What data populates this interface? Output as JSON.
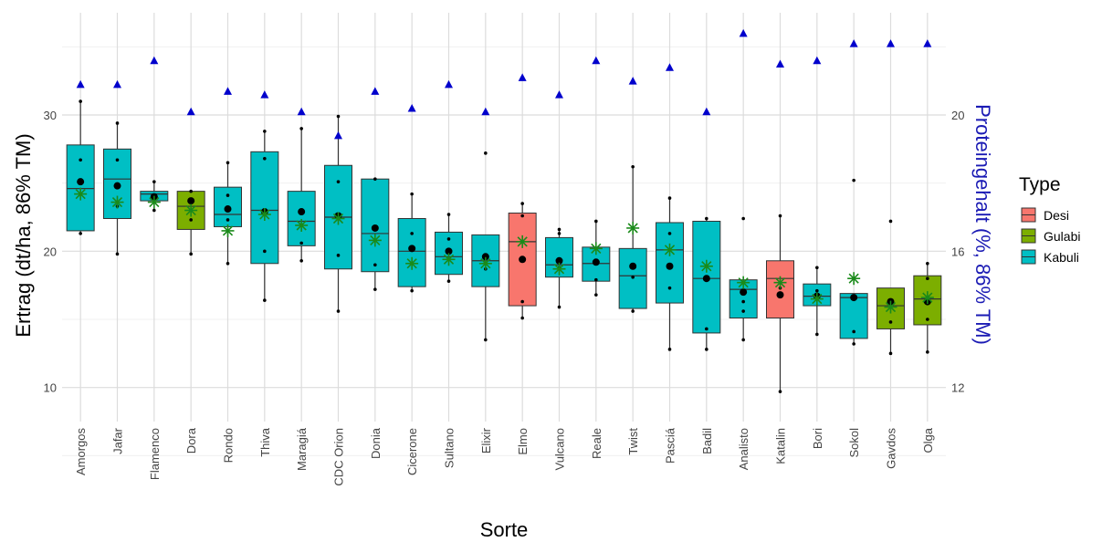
{
  "chart_data": {
    "type": "boxplot",
    "xlabel": "Sorte",
    "ylabel": "Ertrag (dt/ha, 86% TM)",
    "y2label": "Proteingehalt (%, 86% TM)",
    "ylim": [
      7.5,
      37.5
    ],
    "y_ticks": [
      10,
      20,
      30
    ],
    "y2_ticks": [
      12,
      16,
      20
    ],
    "y2_transform": "protein = yield * 0.4 + 8",
    "grid": true,
    "legend": {
      "title": "Type",
      "position": "right",
      "items": [
        {
          "label": "Desi",
          "color": "#F8766D"
        },
        {
          "label": "Gulabi",
          "color": "#7CAE00"
        },
        {
          "label": "Kabuli",
          "color": "#00BFC4"
        }
      ]
    },
    "marker_colors": {
      "protein": "#0000CC",
      "star": "#1A8A1A",
      "mean": "#000000",
      "median": "#000000"
    },
    "varieties": [
      {
        "name": "Amorgos",
        "type": "Kabuli",
        "whisker_low": 21.3,
        "q1": 21.5,
        "median": 24.6,
        "q3": 27.8,
        "whisker_high": 31.0,
        "mean": 25.1,
        "star": 24.2,
        "protein": 20.9,
        "points": [
          21.3,
          26.7,
          31.0
        ]
      },
      {
        "name": "Jafar",
        "type": "Kabuli",
        "whisker_low": 19.8,
        "q1": 22.4,
        "median": 25.3,
        "q3": 27.5,
        "whisker_high": 29.4,
        "mean": 24.8,
        "star": 23.6,
        "protein": 20.9,
        "points": [
          19.8,
          23.3,
          26.7,
          29.4
        ]
      },
      {
        "name": "Flamenco",
        "type": "Kabuli",
        "whisker_low": 23.0,
        "q1": 23.7,
        "median": 24.2,
        "q3": 24.4,
        "whisker_high": 25.1,
        "mean": 24.0,
        "star": 23.6,
        "protein": 21.6,
        "points": [
          23.0,
          23.9,
          25.1
        ]
      },
      {
        "name": "Dora",
        "type": "Gulabi",
        "whisker_low": 19.8,
        "q1": 21.6,
        "median": 23.3,
        "q3": 24.4,
        "whisker_high": 24.4,
        "mean": 23.7,
        "star": 23.0,
        "protein": 20.1,
        "points": [
          19.8,
          22.3,
          24.4
        ]
      },
      {
        "name": "Rondo",
        "type": "Kabuli",
        "whisker_low": 19.1,
        "q1": 21.8,
        "median": 22.7,
        "q3": 24.7,
        "whisker_high": 26.5,
        "mean": 23.1,
        "star": 21.5,
        "protein": 20.7,
        "points": [
          19.1,
          22.3,
          24.1,
          26.5
        ]
      },
      {
        "name": "Thiva",
        "type": "Kabuli",
        "whisker_low": 16.4,
        "q1": 19.1,
        "median": 23.0,
        "q3": 27.3,
        "whisker_high": 28.8,
        "mean": 22.9,
        "star": 22.7,
        "protein": 20.6,
        "points": [
          16.4,
          20.0,
          26.8,
          28.8
        ]
      },
      {
        "name": "Maragiá",
        "type": "Kabuli",
        "whisker_low": 19.3,
        "q1": 20.4,
        "median": 22.2,
        "q3": 24.4,
        "whisker_high": 29.0,
        "mean": 22.9,
        "star": 21.9,
        "protein": 20.1,
        "points": [
          19.3,
          20.6,
          29.0
        ]
      },
      {
        "name": "CDC Orion",
        "type": "Kabuli",
        "whisker_low": 15.6,
        "q1": 18.7,
        "median": 22.5,
        "q3": 26.3,
        "whisker_high": 29.9,
        "mean": 22.6,
        "star": 22.4,
        "protein": 19.4,
        "points": [
          15.6,
          19.7,
          25.1,
          29.9
        ]
      },
      {
        "name": "Donia",
        "type": "Kabuli",
        "whisker_low": 17.2,
        "q1": 18.5,
        "median": 21.3,
        "q3": 25.3,
        "whisker_high": 25.3,
        "mean": 21.7,
        "star": 20.8,
        "protein": 20.7,
        "points": [
          17.2,
          19.0,
          25.3
        ]
      },
      {
        "name": "Cicerone",
        "type": "Kabuli",
        "whisker_low": 17.1,
        "q1": 17.4,
        "median": 20.0,
        "q3": 22.4,
        "whisker_high": 24.2,
        "mean": 20.2,
        "star": 19.1,
        "protein": 20.2,
        "points": [
          17.1,
          21.3,
          24.2
        ]
      },
      {
        "name": "Sultano",
        "type": "Kabuli",
        "whisker_low": 17.8,
        "q1": 18.3,
        "median": 19.6,
        "q3": 21.4,
        "whisker_high": 22.7,
        "mean": 20.0,
        "star": 19.4,
        "protein": 20.9,
        "points": [
          17.8,
          20.9,
          22.7
        ]
      },
      {
        "name": "Elixir",
        "type": "Kabuli",
        "whisker_low": 13.5,
        "q1": 17.4,
        "median": 19.3,
        "q3": 21.2,
        "whisker_high": 21.2,
        "mean": 19.6,
        "star": 19.1,
        "protein": 20.1,
        "points": [
          13.5,
          18.7,
          27.2
        ]
      },
      {
        "name": "Elmo",
        "type": "Desi",
        "whisker_low": 15.1,
        "q1": 16.0,
        "median": 20.7,
        "q3": 22.8,
        "whisker_high": 23.5,
        "mean": 19.4,
        "star": 20.7,
        "protein": 21.1,
        "points": [
          15.1,
          16.3,
          22.6,
          23.5
        ]
      },
      {
        "name": "Vulcano",
        "type": "Kabuli",
        "whisker_low": 15.9,
        "q1": 18.1,
        "median": 19.0,
        "q3": 21.0,
        "whisker_high": 21.6,
        "mean": 19.3,
        "star": 18.7,
        "protein": 20.6,
        "points": [
          15.9,
          18.8,
          21.3,
          21.6
        ]
      },
      {
        "name": "Reale",
        "type": "Kabuli",
        "whisker_low": 16.8,
        "q1": 17.8,
        "median": 19.1,
        "q3": 20.3,
        "whisker_high": 22.2,
        "mean": 19.2,
        "star": 20.2,
        "protein": 21.6,
        "points": [
          16.8,
          17.9,
          22.2
        ]
      },
      {
        "name": "Twist",
        "type": "Kabuli",
        "whisker_low": 15.6,
        "q1": 15.8,
        "median": 18.2,
        "q3": 20.2,
        "whisker_high": 26.2,
        "mean": 18.9,
        "star": 21.7,
        "protein": 21.0,
        "points": [
          15.6,
          18.1,
          26.2
        ]
      },
      {
        "name": "Pasciá",
        "type": "Kabuli",
        "whisker_low": 12.8,
        "q1": 16.2,
        "median": 20.1,
        "q3": 22.1,
        "whisker_high": 23.9,
        "mean": 18.9,
        "star": 20.1,
        "protein": 21.4,
        "points": [
          12.8,
          17.3,
          21.3,
          23.9
        ]
      },
      {
        "name": "Badil",
        "type": "Kabuli",
        "whisker_low": 12.8,
        "q1": 14.0,
        "median": 18.0,
        "q3": 22.2,
        "whisker_high": 22.5,
        "mean": 18.0,
        "star": 18.9,
        "protein": 20.1,
        "points": [
          12.8,
          14.3,
          22.4
        ]
      },
      {
        "name": "Analisto",
        "type": "Kabuli",
        "whisker_low": 13.5,
        "q1": 15.1,
        "median": 17.2,
        "q3": 17.9,
        "whisker_high": 17.9,
        "mean": 17.0,
        "star": 17.7,
        "protein": 22.4,
        "points": [
          13.5,
          15.6,
          16.3,
          22.4
        ]
      },
      {
        "name": "Katalin",
        "type": "Desi",
        "whisker_low": 9.7,
        "q1": 15.1,
        "median": 18.0,
        "q3": 19.3,
        "whisker_high": 22.6,
        "mean": 16.8,
        "star": 17.7,
        "protein": 21.5,
        "points": [
          9.7,
          17.3,
          22.6
        ]
      },
      {
        "name": "Bori",
        "type": "Kabuli",
        "whisker_low": 13.9,
        "q1": 16.0,
        "median": 16.7,
        "q3": 17.6,
        "whisker_high": 18.8,
        "mean": 16.7,
        "star": 16.5,
        "protein": 21.6,
        "points": [
          13.9,
          17.1,
          18.8
        ]
      },
      {
        "name": "Sokol",
        "type": "Kabuli",
        "whisker_low": 13.2,
        "q1": 13.6,
        "median": 16.6,
        "q3": 16.9,
        "whisker_high": 16.9,
        "mean": 16.6,
        "star": 18.0,
        "protein": 22.1,
        "points": [
          13.2,
          14.1,
          25.2
        ]
      },
      {
        "name": "Gavdos",
        "type": "Gulabi",
        "whisker_low": 12.5,
        "q1": 14.3,
        "median": 16.0,
        "q3": 17.3,
        "whisker_high": 17.3,
        "mean": 16.3,
        "star": 15.9,
        "protein": 22.1,
        "points": [
          12.5,
          14.8,
          22.2
        ]
      },
      {
        "name": "Olga",
        "type": "Gulabi",
        "whisker_low": 12.6,
        "q1": 14.6,
        "median": 16.5,
        "q3": 18.2,
        "whisker_high": 19.1,
        "mean": 16.3,
        "star": 16.6,
        "protein": 22.1,
        "points": [
          12.6,
          15.0,
          18.0,
          19.1
        ]
      }
    ]
  }
}
